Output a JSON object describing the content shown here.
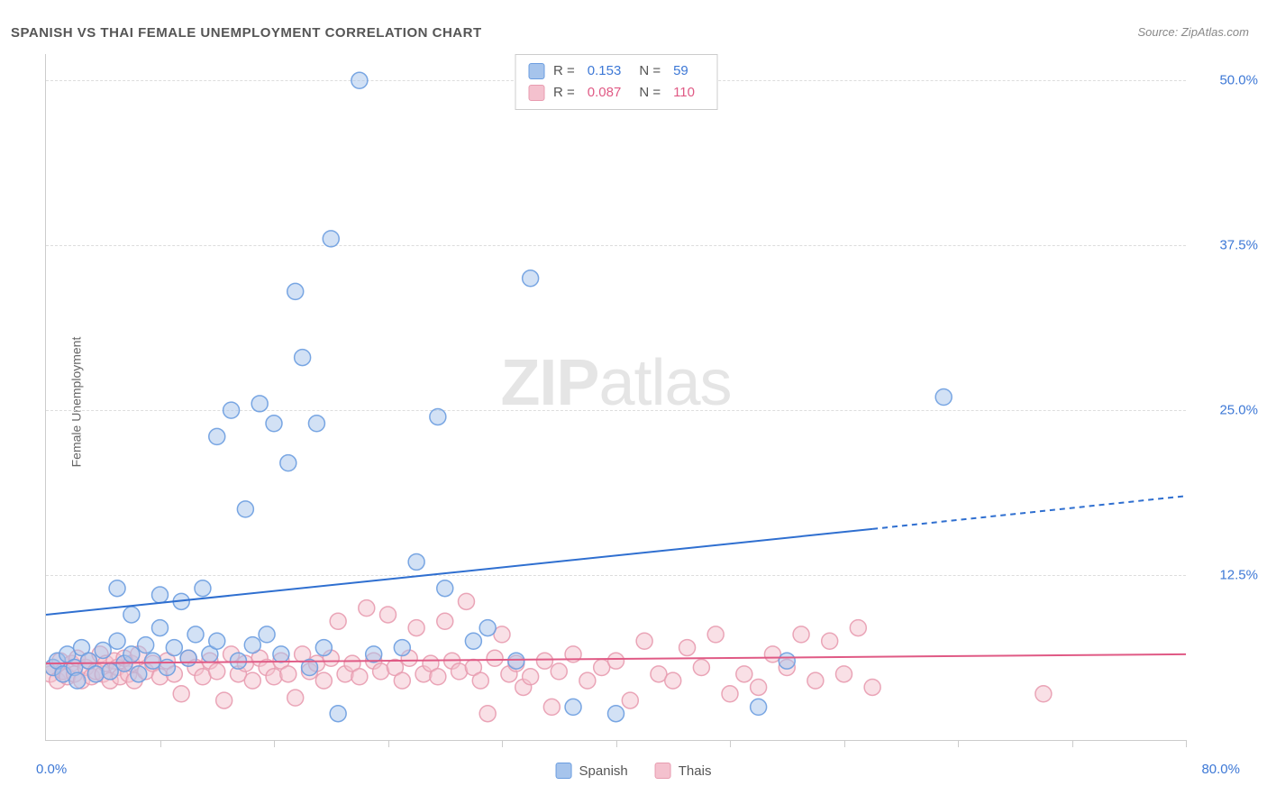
{
  "title": "SPANISH VS THAI FEMALE UNEMPLOYMENT CORRELATION CHART",
  "source_prefix": "Source: ",
  "source": "ZipAtlas.com",
  "y_axis_label": "Female Unemployment",
  "watermark_bold": "ZIP",
  "watermark_light": "atlas",
  "chart": {
    "type": "scatter",
    "xlim": [
      0,
      80
    ],
    "ylim": [
      0,
      52
    ],
    "x_origin_label": "0.0%",
    "x_max_label": "80.0%",
    "x_tick_positions": [
      8,
      16,
      24,
      32,
      40,
      48,
      56,
      64,
      72,
      80
    ],
    "y_ticks": [
      {
        "value": 12.5,
        "label": "12.5%"
      },
      {
        "value": 25.0,
        "label": "25.0%"
      },
      {
        "value": 37.5,
        "label": "37.5%"
      },
      {
        "value": 50.0,
        "label": "50.0%"
      }
    ],
    "grid_color": "#dddddd",
    "axis_color": "#cccccc",
    "background_color": "#ffffff",
    "marker_radius": 9,
    "marker_opacity": 0.5,
    "marker_stroke_opacity": 0.9,
    "series": [
      {
        "name": "Spanish",
        "color": "#6b9de0",
        "fill": "#a6c4ec",
        "value_color": "#3d78d6",
        "R": "0.153",
        "N": "59",
        "trend": {
          "x1": 0,
          "y1": 9.5,
          "x2_solid": 58,
          "y2_solid": 16.0,
          "x2": 80,
          "y2": 18.5,
          "color": "#2f6fd0",
          "width": 2
        },
        "points": [
          [
            0.5,
            5.5
          ],
          [
            0.8,
            6.0
          ],
          [
            1.2,
            5.0
          ],
          [
            1.5,
            6.5
          ],
          [
            2.0,
            5.5
          ],
          [
            2.5,
            7.0
          ],
          [
            2.2,
            4.5
          ],
          [
            3.0,
            6.0
          ],
          [
            3.5,
            5.0
          ],
          [
            4.0,
            6.8
          ],
          [
            4.5,
            5.2
          ],
          [
            5.0,
            7.5
          ],
          [
            5.5,
            5.8
          ],
          [
            5.0,
            11.5
          ],
          [
            6.0,
            6.5
          ],
          [
            6.0,
            9.5
          ],
          [
            6.5,
            5.0
          ],
          [
            7.0,
            7.2
          ],
          [
            7.5,
            6.0
          ],
          [
            8.0,
            8.5
          ],
          [
            8.0,
            11.0
          ],
          [
            8.5,
            5.5
          ],
          [
            9.0,
            7.0
          ],
          [
            9.5,
            10.5
          ],
          [
            10.0,
            6.2
          ],
          [
            10.5,
            8.0
          ],
          [
            11.0,
            11.5
          ],
          [
            11.5,
            6.5
          ],
          [
            12.0,
            7.5
          ],
          [
            12.0,
            23.0
          ],
          [
            13.0,
            25.0
          ],
          [
            13.5,
            6.0
          ],
          [
            14.0,
            17.5
          ],
          [
            14.5,
            7.2
          ],
          [
            15.0,
            25.5
          ],
          [
            15.5,
            8.0
          ],
          [
            16.0,
            24.0
          ],
          [
            16.5,
            6.5
          ],
          [
            17.0,
            21.0
          ],
          [
            17.5,
            34.0
          ],
          [
            18.0,
            29.0
          ],
          [
            18.5,
            5.5
          ],
          [
            19.0,
            24.0
          ],
          [
            19.5,
            7.0
          ],
          [
            20.0,
            38.0
          ],
          [
            20.5,
            2.0
          ],
          [
            22.0,
            50.0
          ],
          [
            23.0,
            6.5
          ],
          [
            25.0,
            7.0
          ],
          [
            26.0,
            13.5
          ],
          [
            27.5,
            24.5
          ],
          [
            28.0,
            11.5
          ],
          [
            30.0,
            7.5
          ],
          [
            31.0,
            8.5
          ],
          [
            33.0,
            6.0
          ],
          [
            34.0,
            35.0
          ],
          [
            37.0,
            2.5
          ],
          [
            40.0,
            2.0
          ],
          [
            50.0,
            2.5
          ],
          [
            52.0,
            6.0
          ],
          [
            63.0,
            26.0
          ]
        ]
      },
      {
        "name": "Thais",
        "color": "#e89cb0",
        "fill": "#f4c1ce",
        "value_color": "#e05a85",
        "R": "0.087",
        "N": "110",
        "trend": {
          "x1": 0,
          "y1": 5.8,
          "x2_solid": 80,
          "y2_solid": 6.5,
          "x2": 80,
          "y2": 6.5,
          "color": "#e05a85",
          "width": 2
        },
        "points": [
          [
            0.3,
            5.0
          ],
          [
            0.5,
            5.5
          ],
          [
            0.8,
            4.5
          ],
          [
            1.0,
            6.0
          ],
          [
            1.2,
            5.2
          ],
          [
            1.5,
            4.8
          ],
          [
            1.8,
            5.8
          ],
          [
            2.0,
            5.0
          ],
          [
            2.2,
            6.2
          ],
          [
            2.5,
            4.5
          ],
          [
            2.8,
            5.5
          ],
          [
            3.0,
            6.0
          ],
          [
            3.2,
            4.8
          ],
          [
            3.5,
            5.2
          ],
          [
            3.8,
            6.5
          ],
          [
            4.0,
            5.0
          ],
          [
            4.2,
            5.8
          ],
          [
            4.5,
            4.5
          ],
          [
            4.8,
            6.0
          ],
          [
            5.0,
            5.5
          ],
          [
            5.2,
            4.8
          ],
          [
            5.5,
            6.2
          ],
          [
            5.8,
            5.0
          ],
          [
            6.0,
            5.8
          ],
          [
            6.2,
            4.5
          ],
          [
            6.5,
            6.5
          ],
          [
            7.0,
            5.2
          ],
          [
            7.5,
            5.8
          ],
          [
            8.0,
            4.8
          ],
          [
            8.5,
            6.0
          ],
          [
            9.0,
            5.0
          ],
          [
            9.5,
            3.5
          ],
          [
            10.0,
            6.2
          ],
          [
            10.5,
            5.5
          ],
          [
            11.0,
            4.8
          ],
          [
            11.5,
            6.0
          ],
          [
            12.0,
            5.2
          ],
          [
            12.5,
            3.0
          ],
          [
            13.0,
            6.5
          ],
          [
            13.5,
            5.0
          ],
          [
            14.0,
            5.8
          ],
          [
            14.5,
            4.5
          ],
          [
            15.0,
            6.2
          ],
          [
            15.5,
            5.5
          ],
          [
            16.0,
            4.8
          ],
          [
            16.5,
            6.0
          ],
          [
            17.0,
            5.0
          ],
          [
            17.5,
            3.2
          ],
          [
            18.0,
            6.5
          ],
          [
            18.5,
            5.2
          ],
          [
            19.0,
            5.8
          ],
          [
            19.5,
            4.5
          ],
          [
            20.0,
            6.2
          ],
          [
            20.5,
            9.0
          ],
          [
            21.0,
            5.0
          ],
          [
            21.5,
            5.8
          ],
          [
            22.0,
            4.8
          ],
          [
            22.5,
            10.0
          ],
          [
            23.0,
            6.0
          ],
          [
            23.5,
            5.2
          ],
          [
            24.0,
            9.5
          ],
          [
            24.5,
            5.5
          ],
          [
            25.0,
            4.5
          ],
          [
            25.5,
            6.2
          ],
          [
            26.0,
            8.5
          ],
          [
            26.5,
            5.0
          ],
          [
            27.0,
            5.8
          ],
          [
            27.5,
            4.8
          ],
          [
            28.0,
            9.0
          ],
          [
            28.5,
            6.0
          ],
          [
            29.0,
            5.2
          ],
          [
            29.5,
            10.5
          ],
          [
            30.0,
            5.5
          ],
          [
            30.5,
            4.5
          ],
          [
            31.0,
            2.0
          ],
          [
            31.5,
            6.2
          ],
          [
            32.0,
            8.0
          ],
          [
            32.5,
            5.0
          ],
          [
            33.0,
            5.8
          ],
          [
            33.5,
            4.0
          ],
          [
            34.0,
            4.8
          ],
          [
            35.0,
            6.0
          ],
          [
            35.5,
            2.5
          ],
          [
            36.0,
            5.2
          ],
          [
            37.0,
            6.5
          ],
          [
            38.0,
            4.5
          ],
          [
            39.0,
            5.5
          ],
          [
            40.0,
            6.0
          ],
          [
            41.0,
            3.0
          ],
          [
            42.0,
            7.5
          ],
          [
            43.0,
            5.0
          ],
          [
            44.0,
            4.5
          ],
          [
            45.0,
            7.0
          ],
          [
            46.0,
            5.5
          ],
          [
            47.0,
            8.0
          ],
          [
            48.0,
            3.5
          ],
          [
            49.0,
            5.0
          ],
          [
            50.0,
            4.0
          ],
          [
            51.0,
            6.5
          ],
          [
            52.0,
            5.5
          ],
          [
            53.0,
            8.0
          ],
          [
            54.0,
            4.5
          ],
          [
            55.0,
            7.5
          ],
          [
            56.0,
            5.0
          ],
          [
            57.0,
            8.5
          ],
          [
            58.0,
            4.0
          ],
          [
            70.0,
            3.5
          ]
        ]
      }
    ]
  },
  "legend": {
    "r_label": "R =",
    "n_label": "N ="
  }
}
